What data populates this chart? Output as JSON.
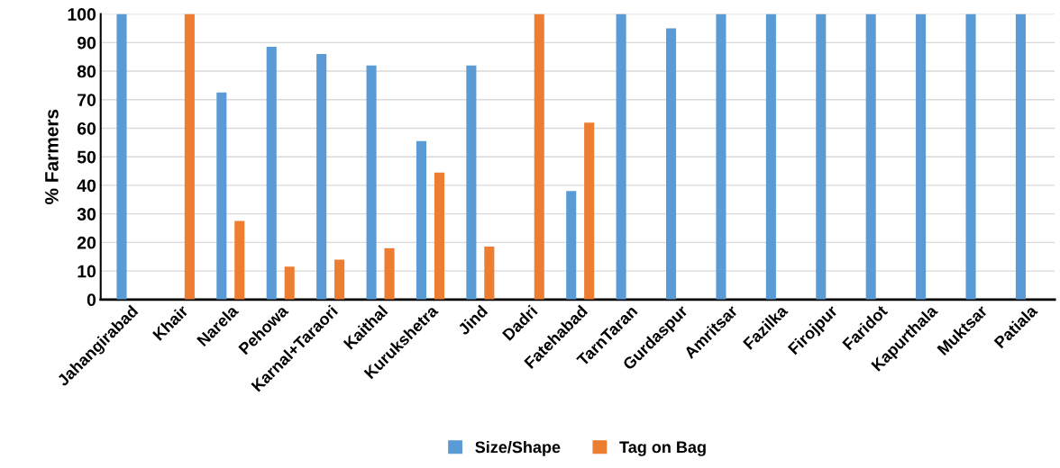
{
  "chart_data": {
    "type": "bar",
    "ylabel": "% Farmers",
    "categories": [
      "Jahangirabad",
      "Khair",
      "Narela",
      "Pehowa",
      "Karnal+Taraori",
      "Kaithal",
      "Kurukshetra",
      "Jind",
      "Dadri",
      "Fatehabad",
      "TarnTaran",
      "Gurdaspur",
      "Amritsar",
      "Fazilka",
      "Firojpur",
      "Faridot",
      "Kapurthala",
      "Muktsar",
      "Patiala"
    ],
    "series": [
      {
        "name": "Size/Shape",
        "color": "#5b9bd5",
        "values": [
          100,
          null,
          72.5,
          88.5,
          86,
          82,
          55.5,
          82,
          null,
          38,
          100,
          95,
          100,
          100,
          100,
          100,
          100,
          100,
          100
        ]
      },
      {
        "name": "Tag on Bag",
        "color": "#ed7d31",
        "values": [
          null,
          100,
          27.5,
          11.5,
          14,
          18,
          44.5,
          18.5,
          100,
          62,
          null,
          null,
          null,
          null,
          null,
          null,
          null,
          null,
          null
        ]
      }
    ],
    "ylim": [
      0,
      100
    ],
    "yticks": [
      0,
      10,
      20,
      30,
      40,
      50,
      60,
      70,
      80,
      90,
      100
    ],
    "grid": "y",
    "legend": "bottom"
  }
}
